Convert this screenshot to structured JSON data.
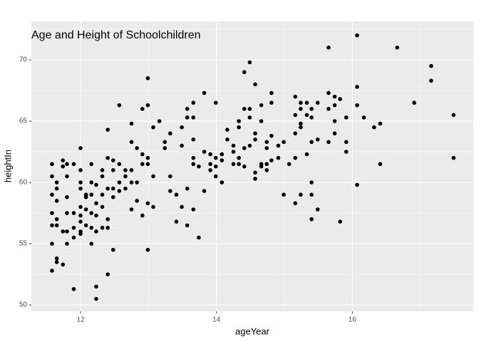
{
  "chart_data": {
    "type": "scatter",
    "title": "Age and Height of Schoolchildren",
    "x_label": "ageYear",
    "y_label": "heightIn",
    "xlim": [
      11.276,
      17.78
    ],
    "ylim": [
      49.48,
      73.14
    ],
    "xticks": [
      12,
      14,
      16
    ],
    "yticks": [
      50,
      55,
      60,
      65,
      70
    ],
    "x_minor_ticks": [
      13,
      15,
      17
    ],
    "y_minor_ticks": [
      52.5,
      57.5,
      62.5,
      67.5,
      72.5
    ],
    "grid": true,
    "color": "#000000",
    "x": [
      11.58,
      11.58,
      11.58,
      11.58,
      11.58,
      11.58,
      11.58,
      11.65,
      11.65,
      11.65,
      11.65,
      11.65,
      11.65,
      11.65,
      11.74,
      11.74,
      11.74,
      11.74,
      11.8,
      11.8,
      11.8,
      11.8,
      11.8,
      11.8,
      11.9,
      11.9,
      11.9,
      11.9,
      11.9,
      12.0,
      12.0,
      12.0,
      12.0,
      12.0,
      12.0,
      12.0,
      12.0,
      12.0,
      12.08,
      12.08,
      12.08,
      12.08,
      12.16,
      12.16,
      12.16,
      12.16,
      12.16,
      12.16,
      12.23,
      12.23,
      12.23,
      12.23,
      12.23,
      12.23,
      12.32,
      12.32,
      12.32,
      12.32,
      12.32,
      12.4,
      12.4,
      12.4,
      12.4,
      12.4,
      12.4,
      12.48,
      12.48,
      12.48,
      12.48,
      12.48,
      12.57,
      12.57,
      12.57,
      12.57,
      12.66,
      12.66,
      12.66,
      12.75,
      12.75,
      12.75,
      12.75,
      12.75,
      12.83,
      12.83,
      12.83,
      12.91,
      12.91,
      12.91,
      12.91,
      12.99,
      12.99,
      12.99,
      12.99,
      12.99,
      12.99,
      13.07,
      13.07,
      13.07,
      13.16,
      13.24,
      13.24,
      13.32,
      13.32,
      13.32,
      13.41,
      13.41,
      13.49,
      13.49,
      13.49,
      13.57,
      13.57,
      13.57,
      13.57,
      13.66,
      13.66,
      13.66,
      13.66,
      13.66,
      13.66,
      13.74,
      13.74,
      13.82,
      13.82,
      13.82,
      13.91,
      13.91,
      13.91,
      13.99,
      13.99,
      13.99,
      13.99,
      14.08,
      14.08,
      14.08,
      14.16,
      14.16,
      14.25,
      14.25,
      14.25,
      14.33,
      14.33,
      14.33,
      14.33,
      14.41,
      14.41,
      14.41,
      14.41,
      14.49,
      14.49,
      14.49,
      14.49,
      14.57,
      14.57,
      14.57,
      14.57,
      14.57,
      14.66,
      14.66,
      14.66,
      14.66,
      14.74,
      14.74,
      14.74,
      14.74,
      14.81,
      14.81,
      14.81,
      14.81,
      14.91,
      14.91,
      14.99,
      14.99,
      15.07,
      15.16,
      15.16,
      15.16,
      15.16,
      15.16,
      15.24,
      15.24,
      15.24,
      15.24,
      15.24,
      15.33,
      15.33,
      15.33,
      15.4,
      15.4,
      15.4,
      15.4,
      15.4,
      15.4,
      15.49,
      15.49,
      15.49,
      15.65,
      15.65,
      15.65,
      15.65,
      15.74,
      15.74,
      15.74,
      15.74,
      15.82,
      15.82,
      15.91,
      15.91,
      15.91,
      16.07,
      16.07,
      16.07,
      16.07,
      16.17,
      16.32,
      16.41,
      16.41,
      16.66,
      16.91,
      17.16,
      17.16,
      17.49,
      17.49
    ],
    "values": [
      61.5,
      60.5,
      59,
      57.5,
      56.5,
      55,
      52.8,
      60,
      59.5,
      58.5,
      57,
      56.5,
      53.8,
      53.5,
      61.8,
      61.3,
      56,
      53.3,
      61.5,
      60.5,
      58.8,
      57.5,
      56,
      55,
      61.5,
      57.5,
      56.3,
      55.5,
      51.3,
      62.8,
      61,
      60,
      59.5,
      58,
      57.3,
      56.8,
      56,
      55.8,
      59,
      58.8,
      57.8,
      56.5,
      61.5,
      60,
      59,
      57.5,
      56.3,
      55,
      59.8,
      58.3,
      57.3,
      56,
      51.5,
      50.5,
      61,
      60.5,
      59,
      58,
      56.3,
      64.3,
      62,
      59.5,
      57,
      56.3,
      52.5,
      61.8,
      61,
      59.5,
      58.8,
      54.5,
      66.3,
      61.5,
      60,
      59.3,
      61,
      60.5,
      59.5,
      64.8,
      63.3,
      61,
      60,
      57.8,
      62.8,
      60,
      58.5,
      66,
      62.3,
      61.5,
      57.3,
      68.5,
      66.3,
      62,
      61.5,
      58.3,
      54.5,
      64.5,
      60.5,
      58,
      65,
      63.3,
      62.8,
      64,
      60.5,
      59.3,
      59,
      56.8,
      64.5,
      63,
      58,
      66,
      65.3,
      59.5,
      56.5,
      66.5,
      65.3,
      63.5,
      62,
      61.5,
      57.8,
      61.3,
      55.5,
      67.3,
      62.5,
      59.3,
      62.3,
      61.5,
      61,
      66.5,
      62,
      61.3,
      60.5,
      62.3,
      61.8,
      60,
      64.3,
      63.5,
      63,
      62.5,
      61.5,
      65,
      64.5,
      62,
      61.5,
      69,
      66,
      62.8,
      61.3,
      69.8,
      66,
      65.3,
      63,
      68,
      64,
      63.5,
      60.8,
      60.3,
      66.3,
      65,
      61.5,
      61.3,
      63.3,
      62.8,
      61.5,
      61,
      67.3,
      66.5,
      63.8,
      61.8,
      63,
      62,
      63.3,
      59,
      61.5,
      67,
      65.5,
      64,
      62,
      58.3,
      66.5,
      66,
      64.8,
      64.5,
      59,
      66.5,
      65.5,
      62.3,
      66,
      65.3,
      63.3,
      60,
      59,
      57,
      66.5,
      63.5,
      57.8,
      71,
      67.3,
      66,
      63.3,
      67,
      66.3,
      65,
      64,
      66.8,
      56.8,
      65.3,
      63.3,
      62.5,
      72,
      67.8,
      66.3,
      59.8,
      65.3,
      64.5,
      64.8,
      61.5,
      71,
      66.5,
      69.5,
      68.3,
      65.5,
      62
    ]
  }
}
